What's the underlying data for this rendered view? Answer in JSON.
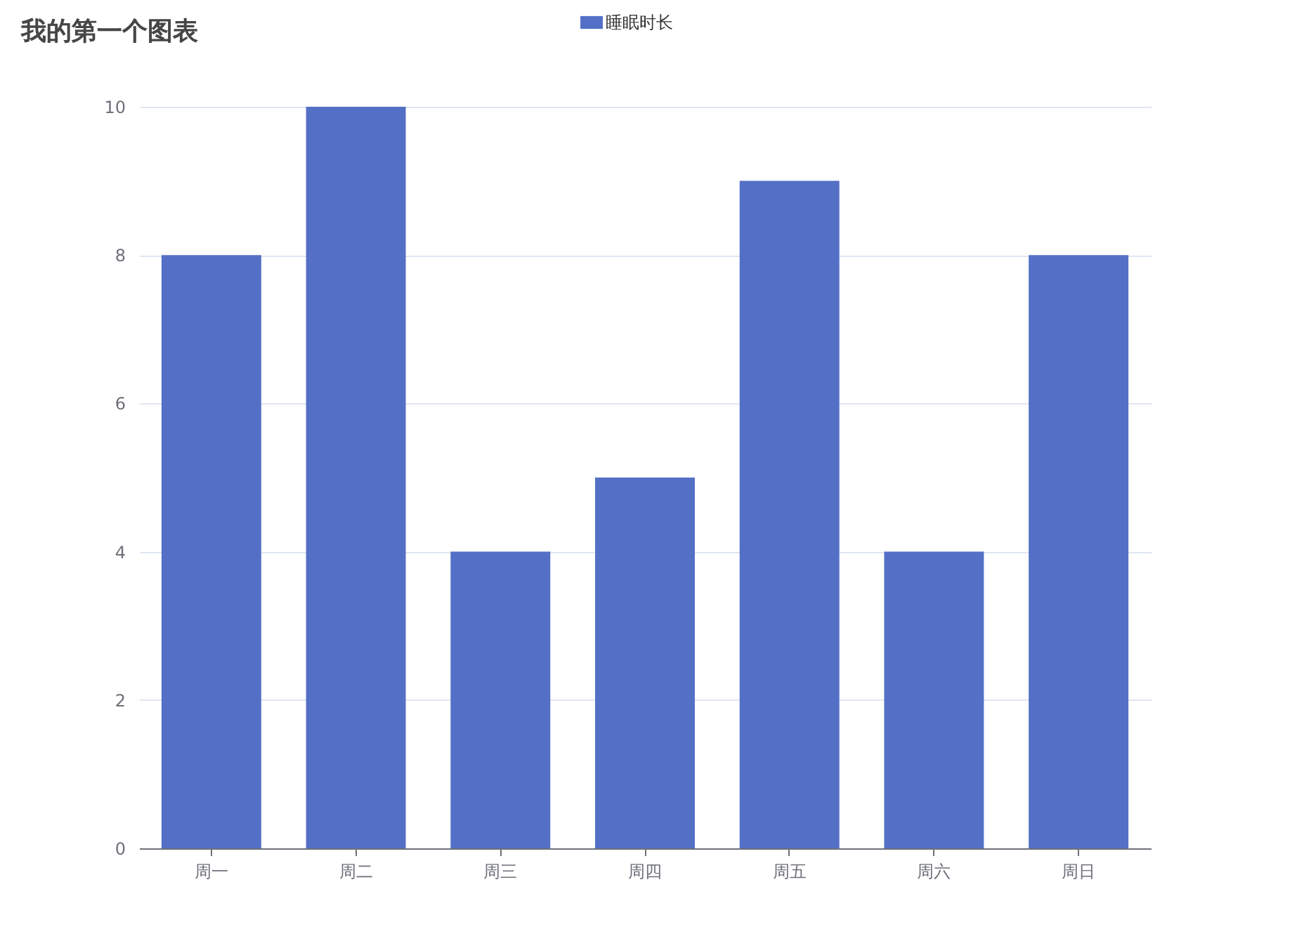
{
  "chart_data": {
    "type": "bar",
    "title": "我的第一个图表",
    "categories": [
      "周一",
      "周二",
      "周三",
      "周四",
      "周五",
      "周六",
      "周日"
    ],
    "series": [
      {
        "name": "睡眠时长",
        "color": "#5470c6",
        "values": [
          8,
          10,
          4,
          5,
          9,
          4,
          8
        ]
      }
    ],
    "ylim": [
      0,
      10
    ],
    "yticks": [
      0,
      2,
      4,
      6,
      8,
      10
    ],
    "grid": "y",
    "legend": "top"
  }
}
